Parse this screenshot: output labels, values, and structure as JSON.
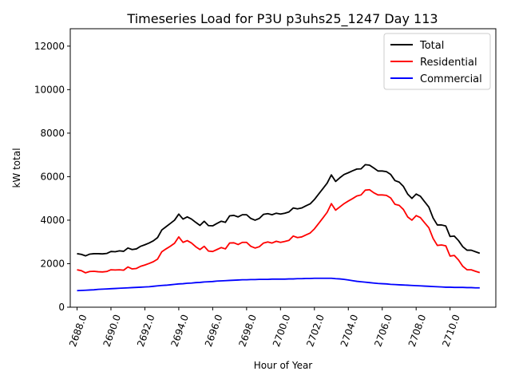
{
  "chart_data": {
    "type": "line",
    "title": "Timeseries Load for P3U p3uhs25_1247  Day 113",
    "xlabel": "Hour of Year",
    "ylabel": "kW total",
    "xlim": [
      2687.6,
      2712.7
    ],
    "ylim": [
      0,
      12800
    ],
    "xticks": [
      2688,
      2690,
      2692,
      2694,
      2696,
      2698,
      2700,
      2702,
      2704,
      2706,
      2708,
      2710
    ],
    "xtick_labels": [
      "2688.0",
      "2690.0",
      "2692.0",
      "2694.0",
      "2696.0",
      "2698.0",
      "2700.0",
      "2702.0",
      "2704.0",
      "2706.0",
      "2708.0",
      "2710.0"
    ],
    "yticks": [
      0,
      2000,
      4000,
      6000,
      8000,
      10000,
      12000
    ],
    "ytick_labels": [
      "0",
      "2000",
      "4000",
      "6000",
      "8000",
      "10000",
      "12000"
    ],
    "legend_position": "top-right",
    "x": [
      2688.0,
      2688.25,
      2688.5,
      2688.75,
      2689.0,
      2689.25,
      2689.5,
      2689.75,
      2690.0,
      2690.25,
      2690.5,
      2690.75,
      2691.0,
      2691.25,
      2691.5,
      2691.75,
      2692.0,
      2692.25,
      2692.5,
      2692.75,
      2693.0,
      2693.25,
      2693.5,
      2693.75,
      2694.0,
      2694.25,
      2694.5,
      2694.75,
      2695.0,
      2695.25,
      2695.5,
      2695.75,
      2696.0,
      2696.25,
      2696.5,
      2696.75,
      2697.0,
      2697.25,
      2697.5,
      2697.75,
      2698.0,
      2698.25,
      2698.5,
      2698.75,
      2699.0,
      2699.25,
      2699.5,
      2699.75,
      2700.0,
      2700.25,
      2700.5,
      2700.75,
      2701.0,
      2701.25,
      2701.5,
      2701.75,
      2702.0,
      2702.25,
      2702.5,
      2702.75,
      2703.0,
      2703.25,
      2703.5,
      2703.75,
      2704.0,
      2704.25,
      2704.5,
      2704.75,
      2705.0,
      2705.25,
      2705.5,
      2705.75,
      2706.0,
      2706.25,
      2706.5,
      2706.75,
      2707.0,
      2707.25,
      2707.5,
      2707.75,
      2708.0,
      2708.25,
      2708.5,
      2708.75,
      2709.0,
      2709.25,
      2709.5,
      2709.75,
      2710.0,
      2710.25,
      2710.5,
      2710.75,
      2711.0,
      2711.25,
      2711.5,
      2711.75
    ],
    "series": [
      {
        "name": "Total",
        "color": "#000000",
        "values": [
          2460,
          2430,
          2360,
          2440,
          2460,
          2460,
          2450,
          2470,
          2560,
          2550,
          2590,
          2570,
          2720,
          2650,
          2680,
          2800,
          2870,
          2950,
          3050,
          3200,
          3550,
          3700,
          3850,
          4000,
          4280,
          4050,
          4150,
          4050,
          3900,
          3760,
          3950,
          3750,
          3740,
          3850,
          3950,
          3900,
          4200,
          4220,
          4150,
          4250,
          4250,
          4080,
          4000,
          4080,
          4270,
          4300,
          4250,
          4320,
          4280,
          4320,
          4380,
          4560,
          4520,
          4560,
          4660,
          4750,
          4950,
          5200,
          5450,
          5700,
          6080,
          5780,
          5950,
          6100,
          6180,
          6270,
          6350,
          6360,
          6550,
          6530,
          6400,
          6260,
          6260,
          6230,
          6100,
          5820,
          5750,
          5550,
          5200,
          5000,
          5200,
          5100,
          4850,
          4600,
          4100,
          3780,
          3780,
          3730,
          3250,
          3270,
          3060,
          2780,
          2620,
          2620,
          2550,
          2480
        ]
      },
      {
        "name": "Residential",
        "color": "#ff0000",
        "values": [
          1720,
          1680,
          1580,
          1640,
          1650,
          1630,
          1620,
          1640,
          1720,
          1710,
          1720,
          1700,
          1850,
          1760,
          1780,
          1880,
          1940,
          2010,
          2090,
          2210,
          2550,
          2680,
          2800,
          2940,
          3230,
          2980,
          3060,
          2950,
          2780,
          2650,
          2800,
          2580,
          2560,
          2650,
          2740,
          2680,
          2950,
          2960,
          2880,
          2980,
          2980,
          2800,
          2720,
          2780,
          2950,
          3000,
          2950,
          3030,
          2980,
          3020,
          3070,
          3270,
          3200,
          3230,
          3320,
          3410,
          3600,
          3850,
          4100,
          4360,
          4760,
          4460,
          4610,
          4760,
          4880,
          4990,
          5110,
          5160,
          5380,
          5400,
          5260,
          5160,
          5160,
          5140,
          5020,
          4730,
          4680,
          4490,
          4150,
          4000,
          4210,
          4120,
          3880,
          3650,
          3160,
          2840,
          2860,
          2820,
          2350,
          2380,
          2170,
          1880,
          1720,
          1720,
          1650,
          1590
        ]
      },
      {
        "name": "Commercial",
        "color": "#0000ff",
        "values": [
          760,
          770,
          780,
          790,
          800,
          820,
          830,
          840,
          850,
          860,
          870,
          880,
          890,
          900,
          910,
          920,
          930,
          940,
          960,
          980,
          1000,
          1010,
          1030,
          1050,
          1070,
          1080,
          1100,
          1110,
          1130,
          1140,
          1160,
          1170,
          1180,
          1200,
          1210,
          1220,
          1230,
          1240,
          1250,
          1260,
          1260,
          1270,
          1270,
          1280,
          1280,
          1280,
          1290,
          1290,
          1290,
          1290,
          1300,
          1300,
          1310,
          1310,
          1320,
          1320,
          1330,
          1330,
          1330,
          1330,
          1330,
          1310,
          1300,
          1280,
          1250,
          1220,
          1190,
          1170,
          1150,
          1130,
          1110,
          1090,
          1080,
          1070,
          1050,
          1040,
          1030,
          1020,
          1010,
          1000,
          990,
          980,
          970,
          960,
          950,
          940,
          930,
          920,
          920,
          910,
          910,
          910,
          900,
          900,
          890,
          890
        ]
      }
    ]
  }
}
